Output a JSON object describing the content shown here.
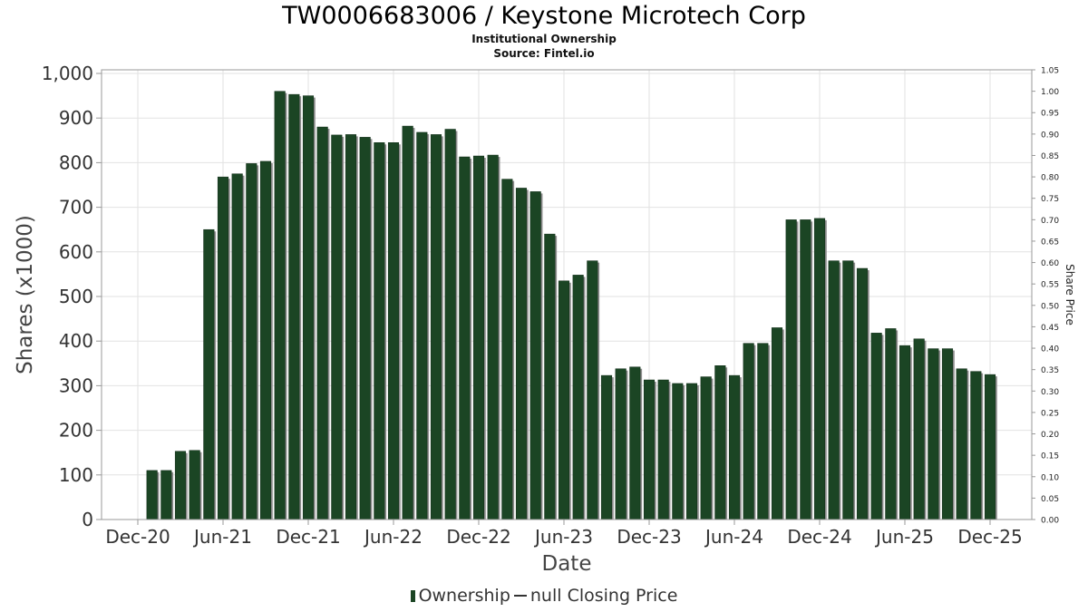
{
  "chart_data": {
    "type": "bar",
    "title": "TW0006683006 / Keystone Microtech Corp",
    "subtitle": "Institutional Ownership",
    "source": "Source: Fintel.io",
    "xlabel": "Date",
    "ylabel": "Shares (x1000)",
    "y2label": "Share Price",
    "ylim": [
      0,
      1000
    ],
    "y2lim": [
      0,
      1.05
    ],
    "yticks": [
      "0",
      "100",
      "200",
      "300",
      "400",
      "500",
      "600",
      "700",
      "800",
      "900",
      "1,000"
    ],
    "y2ticks": [
      "0.00",
      "0.05",
      "0.10",
      "0.15",
      "0.20",
      "0.25",
      "0.30",
      "0.35",
      "0.40",
      "0.45",
      "0.50",
      "0.55",
      "0.60",
      "0.65",
      "0.70",
      "0.75",
      "0.80",
      "0.85",
      "0.90",
      "0.95",
      "1.00",
      "1.05"
    ],
    "xticks": [
      "Dec-20",
      "Jun-21",
      "Dec-21",
      "Jun-22",
      "Dec-22",
      "Jun-23",
      "Dec-23",
      "Jun-24",
      "Dec-24",
      "Jun-25",
      "Dec-25"
    ],
    "series": [
      {
        "name": "Ownership",
        "color": "#1b4524",
        "values": [
          110,
          110,
          153,
          155,
          650,
          768,
          775,
          798,
          803,
          960,
          953,
          950,
          880,
          862,
          863,
          857,
          845,
          845,
          882,
          868,
          863,
          875,
          813,
          815,
          817,
          763,
          743,
          735,
          640,
          535,
          548,
          580,
          323,
          338,
          342,
          313,
          313,
          305,
          305,
          320,
          345,
          323,
          395,
          395,
          430,
          672,
          672,
          675,
          580,
          580,
          563,
          418,
          428,
          390,
          405,
          383,
          383,
          338,
          332,
          325
        ]
      },
      {
        "name": "null Closing Price",
        "color": "#333333",
        "values": []
      }
    ],
    "legend": [
      "Ownership",
      "null Closing Price"
    ]
  }
}
